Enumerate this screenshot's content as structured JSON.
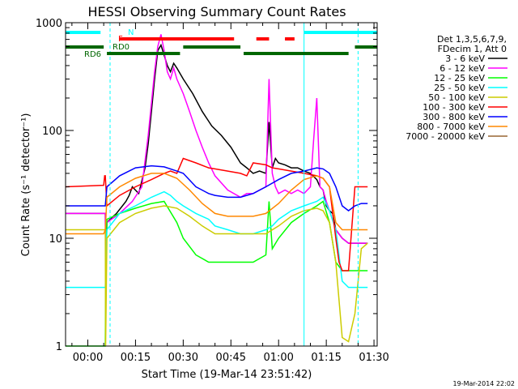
{
  "chart_data": {
    "type": "line",
    "title": "HESSI Observing Summary Count Rates",
    "xlabel": "Start Time (19-Mar-14 23:51:42)",
    "ylabel": "Count Rate (s⁻¹ detector⁻¹)",
    "y_scale": "log",
    "ylim": [
      1,
      1000
    ],
    "xlim_minutes": [
      -7,
      91
    ],
    "x_ticks": [
      {
        "label": "00:00",
        "minutes": 0
      },
      {
        "label": "00:15",
        "minutes": 15
      },
      {
        "label": "00:30",
        "minutes": 30
      },
      {
        "label": "00:45",
        "minutes": 45
      },
      {
        "label": "01:00",
        "minutes": 60
      },
      {
        "label": "01:15",
        "minutes": 75
      },
      {
        "label": "01:30",
        "minutes": 90
      }
    ],
    "y_ticks": [
      {
        "label": "1",
        "value": 1
      },
      {
        "label": "10",
        "value": 10
      },
      {
        "label": "100",
        "value": 100
      },
      {
        "label": "1000",
        "value": 1000
      }
    ],
    "grid": false,
    "legend_position": "right",
    "legend_header": [
      "Det 1,3,5,6,7,9,",
      "FDecim 1, Att 0"
    ],
    "series": [
      {
        "name": "3 - 6 keV",
        "color": "#000000",
        "x": [
          -7,
          5.5,
          5.6,
          6,
          8,
          9,
          12,
          13,
          14,
          16,
          18,
          19,
          20,
          21,
          22,
          23,
          24,
          25,
          26,
          27,
          28,
          30,
          33,
          36,
          39,
          42,
          45,
          48,
          50,
          52,
          54,
          56,
          57,
          58,
          59,
          60,
          62,
          64,
          66,
          68,
          70,
          72,
          73,
          74,
          75,
          76,
          77,
          78,
          80,
          82,
          84,
          86,
          88
        ],
        "y": [
          17,
          17,
          6,
          14,
          16,
          17,
          22,
          25,
          30,
          26,
          45,
          75,
          150,
          300,
          550,
          620,
          500,
          400,
          350,
          420,
          380,
          300,
          220,
          150,
          110,
          90,
          70,
          50,
          45,
          40,
          42,
          40,
          120,
          45,
          55,
          50,
          48,
          45,
          45,
          42,
          40,
          35,
          30,
          28,
          20,
          18,
          17,
          12,
          10,
          9,
          9,
          9,
          9
        ]
      },
      {
        "name": "6 - 12 keV",
        "color": "#ff00ff",
        "x": [
          -7,
          5.5,
          5.6,
          6,
          10,
          14,
          17,
          19,
          21,
          22,
          23,
          24,
          25,
          26,
          27,
          28,
          30,
          32,
          34,
          36,
          38,
          40,
          44,
          48,
          50,
          52,
          54,
          56,
          57,
          58,
          59,
          60,
          62,
          64,
          66,
          68,
          70,
          71,
          72,
          73,
          74,
          75,
          76,
          78,
          80,
          82,
          84,
          86,
          88
        ],
        "y": [
          17,
          17,
          5,
          14,
          17,
          22,
          30,
          90,
          350,
          600,
          780,
          550,
          350,
          300,
          380,
          300,
          220,
          150,
          100,
          70,
          50,
          38,
          28,
          24,
          26,
          26,
          28,
          30,
          300,
          40,
          30,
          26,
          28,
          26,
          28,
          26,
          30,
          80,
          200,
          30,
          28,
          22,
          18,
          12,
          10,
          9,
          9,
          9,
          9
        ]
      },
      {
        "name": "12 - 25 keV",
        "color": "#00ff00",
        "x": [
          -7,
          5.5,
          5.6,
          6,
          10,
          15,
          20,
          24,
          28,
          30,
          34,
          38,
          40,
          44,
          48,
          52,
          56,
          57,
          58,
          60,
          64,
          68,
          72,
          74,
          76,
          78,
          80,
          82,
          86,
          88
        ],
        "y": [
          1,
          1,
          3,
          15,
          17,
          19,
          21,
          22,
          14,
          10,
          7,
          6,
          6,
          6,
          6,
          6,
          7,
          22,
          8,
          10,
          14,
          17,
          20,
          22,
          14,
          6,
          5,
          5,
          5,
          5
        ]
      },
      {
        "name": "25 - 50 keV",
        "color": "#00ffff",
        "x": [
          -7,
          5,
          5.5,
          6,
          10,
          15,
          20,
          24,
          26,
          28,
          30,
          34,
          38,
          40,
          44,
          48,
          52,
          56,
          58,
          60,
          64,
          68,
          72,
          74,
          76,
          78,
          80,
          82,
          86,
          88
        ],
        "y": [
          3.5,
          3.5,
          3.5,
          12,
          17,
          20,
          24,
          27,
          25,
          22,
          20,
          17,
          15,
          13,
          12,
          11,
          11,
          12,
          13,
          15,
          18,
          20,
          22,
          24,
          18,
          12,
          4,
          3.5,
          3.5,
          3.5
        ]
      },
      {
        "name": "50 - 100 keV",
        "color": "#cccc00",
        "x": [
          -7,
          5.5,
          5.6,
          6,
          10,
          15,
          20,
          24,
          28,
          32,
          36,
          40,
          44,
          48,
          52,
          56,
          60,
          64,
          68,
          72,
          74,
          76,
          78,
          80,
          82,
          84,
          86,
          88
        ],
        "y": [
          12,
          12,
          1,
          10,
          14,
          17,
          19,
          20,
          19,
          16,
          13,
          11,
          11,
          11,
          11,
          11,
          13,
          16,
          18,
          19,
          18,
          14,
          6,
          1.2,
          1.1,
          2,
          8,
          9
        ]
      },
      {
        "name": "100 - 300 keV",
        "color": "#ff0000",
        "x": [
          -7,
          5,
          5.3,
          5.5,
          6,
          10,
          15,
          20,
          24,
          26,
          28,
          30,
          34,
          38,
          40,
          44,
          48,
          50,
          52,
          56,
          58,
          60,
          64,
          68,
          72,
          74,
          76,
          78,
          79,
          80,
          82,
          84,
          86,
          88
        ],
        "y": [
          30,
          31,
          38,
          38,
          20,
          25,
          30,
          35,
          40,
          42,
          40,
          55,
          50,
          45,
          44,
          42,
          40,
          38,
          50,
          48,
          45,
          44,
          42,
          40,
          38,
          36,
          30,
          10,
          6,
          5,
          5,
          30,
          30,
          30
        ]
      },
      {
        "name": "300 - 800 keV",
        "color": "#0000ff",
        "x": [
          -7,
          5,
          5.5,
          6,
          10,
          15,
          20,
          24,
          28,
          30,
          34,
          38,
          40,
          44,
          48,
          52,
          56,
          60,
          64,
          68,
          72,
          74,
          76,
          78,
          80,
          82,
          84,
          86,
          88
        ],
        "y": [
          20,
          20,
          20,
          30,
          38,
          45,
          47,
          46,
          42,
          40,
          30,
          26,
          25,
          24,
          24,
          26,
          30,
          35,
          40,
          42,
          45,
          44,
          40,
          30,
          20,
          18,
          20,
          21,
          21
        ]
      },
      {
        "name": "800 - 7000 keV",
        "color": "#ff8800",
        "x": [
          -7,
          5,
          5.5,
          6,
          10,
          15,
          20,
          24,
          28,
          32,
          36,
          40,
          44,
          48,
          52,
          56,
          60,
          64,
          68,
          72,
          74,
          76,
          78,
          80,
          82,
          84,
          86,
          88
        ],
        "y": [
          11,
          11,
          12,
          24,
          30,
          36,
          40,
          40,
          36,
          28,
          21,
          17,
          16,
          16,
          16,
          17,
          21,
          28,
          35,
          38,
          36,
          30,
          14,
          12,
          12,
          12,
          12,
          12
        ]
      },
      {
        "name": "7000 - 20000 keV",
        "color": "#996633",
        "x": [],
        "y": []
      }
    ],
    "annotations": [
      {
        "label": "N",
        "color": "#00ffff"
      },
      {
        "label": "F",
        "color": "#ff0000"
      },
      {
        "label": "RD0",
        "color": "#006600"
      },
      {
        "label": "RD6",
        "color": "#006600"
      }
    ],
    "state_bars": {
      "night": {
        "color": "#00ffff",
        "segments": [
          [
            -7,
            4
          ],
          [
            68,
            91
          ]
        ]
      },
      "flare": {
        "color": "#ff0000",
        "segments": [
          [
            10,
            46
          ],
          [
            53,
            57
          ],
          [
            62,
            65
          ]
        ]
      },
      "decim_rd0": {
        "color": "#006600",
        "segments": [
          [
            -7,
            5
          ],
          [
            30,
            48
          ],
          [
            84,
            91
          ]
        ]
      },
      "decim_rd6": {
        "color": "#006600",
        "segments": [
          [
            6,
            29
          ],
          [
            49,
            82
          ]
        ]
      }
    },
    "saa_boundaries": [
      {
        "minutes": 7,
        "style": "dashed"
      },
      {
        "minutes": 68,
        "style": "solid"
      },
      {
        "minutes": 85,
        "style": "dashed"
      }
    ]
  },
  "footer": {
    "timestamp": "19-Mar-2014 22:02"
  }
}
